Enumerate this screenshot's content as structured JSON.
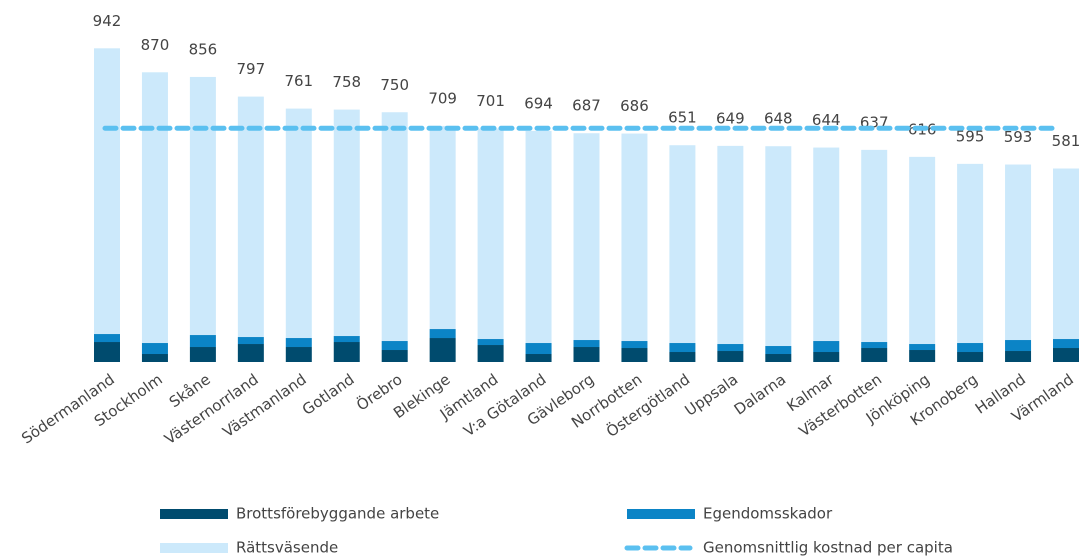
{
  "chart_data": {
    "type": "stacked_bar",
    "categories": [
      "Södermanland",
      "Stockholm",
      "Skåne",
      "Västernorrland",
      "Västmanland",
      "Gotland",
      "Örebro",
      "Blekinge",
      "Jämtland",
      "V:a Götaland",
      "Gävleborg",
      "Norrbotten",
      "Östergötland",
      "Uppsala",
      "Dalarna",
      "Kalmar",
      "Västerbotten",
      "Jönköping",
      "Kronoberg",
      "Halland",
      "Värmland"
    ],
    "series": [
      {
        "name": "Brottsförebyggande arbete",
        "color": "#004b6e",
        "values": [
          60,
          24,
          45,
          54,
          45,
          60,
          36,
          72,
          51,
          24,
          45,
          42,
          30,
          33,
          24,
          30,
          42,
          36,
          30,
          33,
          42
        ]
      },
      {
        "name": "Egendomsskador",
        "color": "#0b84c6",
        "values": [
          24,
          33,
          36,
          21,
          27,
          18,
          27,
          27,
          18,
          33,
          21,
          21,
          27,
          21,
          24,
          33,
          18,
          18,
          27,
          33,
          27
        ]
      },
      {
        "name": "Rättsväsende",
        "color": "#cce9fb",
        "values": [
          858,
          813,
          775,
          722,
          689,
          680,
          687,
          610,
          632,
          637,
          621,
          623,
          594,
          595,
          600,
          581,
          577,
          562,
          538,
          527,
          512
        ]
      }
    ],
    "totals": [
      942,
      870,
      856,
      797,
      761,
      758,
      750,
      709,
      701,
      694,
      687,
      686,
      651,
      649,
      648,
      644,
      637,
      616,
      595,
      593,
      581
    ],
    "average": {
      "name": "Genomsnittlig kostnad per capita",
      "color": "#5bc0f0",
      "value": 702
    },
    "ylim": [
      0,
      1000
    ]
  }
}
